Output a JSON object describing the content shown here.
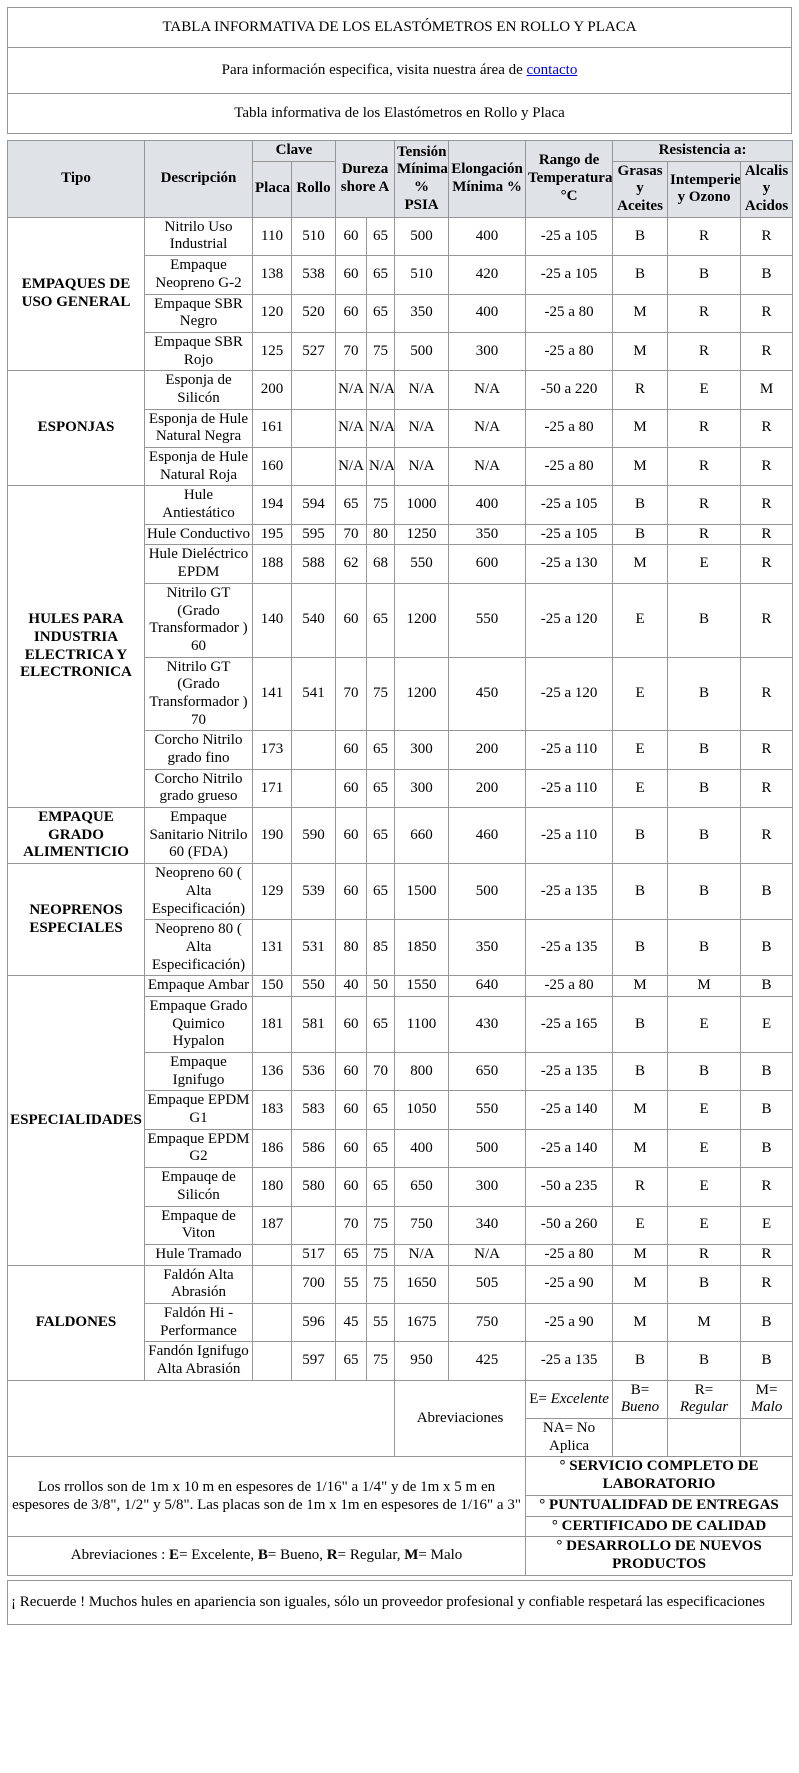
{
  "header": {
    "title": "TABLA INFORMATIVA DE LOS ELASTÓMETROS EN ROLLO Y PLACA",
    "contact_prefix": "Para información especifica, visita nuestra área de ",
    "contact_link": "contacto",
    "subtitle": "Tabla informativa de los Elastómetros en Rollo y Placa"
  },
  "table": {
    "header_rows": [
      [
        {
          "label": "Tipo",
          "rs": 2,
          "name": "col-header-tipo"
        },
        {
          "label": "Descripción",
          "rs": 2,
          "name": "col-header-descripcion"
        },
        {
          "label": "Clave",
          "cs": 2,
          "name": "col-header-clave"
        },
        {
          "label": "Dureza\nshore A",
          "rs": 2,
          "cs": 2,
          "name": "col-header-dureza"
        },
        {
          "label": "Tensión\nMínima\n%\nPSIA",
          "rs": 2,
          "name": "col-header-tension"
        },
        {
          "label": "Elongación\nMínima %",
          "rs": 2,
          "name": "col-header-elongacion"
        },
        {
          "label": "Rango de\nTemperatura\n°C",
          "rs": 2,
          "name": "col-header-rango"
        },
        {
          "label": "Resistencia a:",
          "cs": 3,
          "name": "col-header-resistencia"
        }
      ],
      [
        {
          "label": "Placa",
          "name": "col-header-placa"
        },
        {
          "label": "Rollo",
          "name": "col-header-rollo"
        },
        {
          "label": "Grasas\ny\nAceites",
          "name": "col-header-grasas"
        },
        {
          "label": "Intemperie\ny Ozono",
          "name": "col-header-intemperie"
        },
        {
          "label": "Alcalis\ny\nAcidos",
          "name": "col-header-alcalis"
        }
      ]
    ],
    "groups": [
      {
        "tipo": "EMPAQUES DE USO GENERAL",
        "rows": [
          {
            "descripcion": "Nitrilo Uso Industrial",
            "placa": "110",
            "rollo": "510",
            "dureza_min": "60",
            "dureza_max": "65",
            "tension": "500",
            "elongacion": "400",
            "rango": "-25 a 105",
            "grasas": "B",
            "intemperie": "R",
            "alcalis": "R"
          },
          {
            "descripcion": "Empaque Neopreno G-2",
            "placa": "138",
            "rollo": "538",
            "dureza_min": "60",
            "dureza_max": "65",
            "tension": "510",
            "elongacion": "420",
            "rango": "-25 a 105",
            "grasas": "B",
            "intemperie": "B",
            "alcalis": "B"
          },
          {
            "descripcion": "Empaque SBR Negro",
            "placa": "120",
            "rollo": "520",
            "dureza_min": "60",
            "dureza_max": "65",
            "tension": "350",
            "elongacion": "400",
            "rango": "-25 a 80",
            "grasas": "M",
            "intemperie": "R",
            "alcalis": "R"
          },
          {
            "descripcion": "Empaque SBR Rojo",
            "placa": "125",
            "rollo": "527",
            "dureza_min": "70",
            "dureza_max": "75",
            "tension": "500",
            "elongacion": "300",
            "rango": "-25 a 80",
            "grasas": "M",
            "intemperie": "R",
            "alcalis": "R"
          }
        ]
      },
      {
        "tipo": "ESPONJAS",
        "rows": [
          {
            "descripcion": "Esponja de Silicón",
            "placa": "200",
            "rollo": "",
            "dureza_min": "N/A",
            "dureza_max": "N/A",
            "tension": "N/A",
            "elongacion": "N/A",
            "rango": "-50 a 220",
            "grasas": "R",
            "intemperie": "E",
            "alcalis": "M"
          },
          {
            "descripcion": "Esponja de Hule Natural Negra",
            "placa": "161",
            "rollo": "",
            "dureza_min": "N/A",
            "dureza_max": "N/A",
            "tension": "N/A",
            "elongacion": "N/A",
            "rango": "-25 a 80",
            "grasas": "M",
            "intemperie": "R",
            "alcalis": "R"
          },
          {
            "descripcion": "Esponja de Hule Natural Roja",
            "placa": "160",
            "rollo": "",
            "dureza_min": "N/A",
            "dureza_max": "N/A",
            "tension": "N/A",
            "elongacion": "N/A",
            "rango": "-25 a 80",
            "grasas": "M",
            "intemperie": "R",
            "alcalis": "R"
          }
        ]
      },
      {
        "tipo": "HULES PARA INDUSTRIA ELECTRICA Y ELECTRONICA",
        "rows": [
          {
            "descripcion": "Hule Antiestático",
            "placa": "194",
            "rollo": "594",
            "dureza_min": "65",
            "dureza_max": "75",
            "tension": "1000",
            "elongacion": "400",
            "rango": "-25 a 105",
            "grasas": "B",
            "intemperie": "R",
            "alcalis": "R"
          },
          {
            "descripcion": "Hule Conductivo",
            "placa": "195",
            "rollo": "595",
            "dureza_min": "70",
            "dureza_max": "80",
            "tension": "1250",
            "elongacion": "350",
            "rango": "-25 a 105",
            "grasas": "B",
            "intemperie": "R",
            "alcalis": "R"
          },
          {
            "descripcion": "Hule Dieléctrico EPDM",
            "placa": "188",
            "rollo": "588",
            "dureza_min": "62",
            "dureza_max": "68",
            "tension": "550",
            "elongacion": "600",
            "rango": "-25 a 130",
            "grasas": "M",
            "intemperie": "E",
            "alcalis": "R"
          },
          {
            "descripcion": "Nitrilo GT (Grado Transformador ) 60",
            "placa": "140",
            "rollo": "540",
            "dureza_min": "60",
            "dureza_max": "65",
            "tension": "1200",
            "elongacion": "550",
            "rango": "-25 a 120",
            "grasas": "E",
            "intemperie": "B",
            "alcalis": "R"
          },
          {
            "descripcion": "Nitrilo GT (Grado Transformador ) 70",
            "placa": "141",
            "rollo": "541",
            "dureza_min": "70",
            "dureza_max": "75",
            "tension": "1200",
            "elongacion": "450",
            "rango": "-25 a 120",
            "grasas": "E",
            "intemperie": "B",
            "alcalis": "R"
          },
          {
            "descripcion": "Corcho Nitrilo grado fino",
            "placa": "173",
            "rollo": "",
            "dureza_min": "60",
            "dureza_max": "65",
            "tension": "300",
            "elongacion": "200",
            "rango": "-25 a 110",
            "grasas": "E",
            "intemperie": "B",
            "alcalis": "R"
          },
          {
            "descripcion": "Corcho Nitrilo grado grueso",
            "placa": "171",
            "rollo": "",
            "dureza_min": "60",
            "dureza_max": "65",
            "tension": "300",
            "elongacion": "200",
            "rango": "-25 a 110",
            "grasas": "E",
            "intemperie": "B",
            "alcalis": "R"
          }
        ]
      },
      {
        "tipo": "EMPAQUE GRADO ALIMENTICIO",
        "rows": [
          {
            "descripcion": "Empaque Sanitario Nitrilo 60 (FDA)",
            "placa": "190",
            "rollo": "590",
            "dureza_min": "60",
            "dureza_max": "65",
            "tension": "660",
            "elongacion": "460",
            "rango": "-25 a 110",
            "grasas": "B",
            "intemperie": "B",
            "alcalis": "R"
          }
        ]
      },
      {
        "tipo": "NEOPRENOS ESPECIALES",
        "rows": [
          {
            "descripcion": "Neopreno 60 ( Alta Especificación)",
            "placa": "129",
            "rollo": "539",
            "dureza_min": "60",
            "dureza_max": "65",
            "tension": "1500",
            "elongacion": "500",
            "rango": "-25 a 135",
            "grasas": "B",
            "intemperie": "B",
            "alcalis": "B"
          },
          {
            "descripcion": "Neopreno 80 ( Alta Especificación)",
            "placa": "131",
            "rollo": "531",
            "dureza_min": "80",
            "dureza_max": "85",
            "tension": "1850",
            "elongacion": "350",
            "rango": "-25 a 135",
            "grasas": "B",
            "intemperie": "B",
            "alcalis": "B"
          }
        ]
      },
      {
        "tipo": "ESPECIALIDADES",
        "rows": [
          {
            "descripcion": "Empaque Ambar",
            "placa": "150",
            "rollo": "550",
            "dureza_min": "40",
            "dureza_max": "50",
            "tension": "1550",
            "elongacion": "640",
            "rango": "-25 a 80",
            "grasas": "M",
            "intemperie": "M",
            "alcalis": "B"
          },
          {
            "descripcion": "Empaque Grado Quimico Hypalon",
            "placa": "181",
            "rollo": "581",
            "dureza_min": "60",
            "dureza_max": "65",
            "tension": "1100",
            "elongacion": "430",
            "rango": "-25 a 165",
            "grasas": "B",
            "intemperie": "E",
            "alcalis": "E"
          },
          {
            "descripcion": "Empaque Ignifugo",
            "placa": "136",
            "rollo": "536",
            "dureza_min": "60",
            "dureza_max": "70",
            "tension": "800",
            "elongacion": "650",
            "rango": "-25 a 135",
            "grasas": "B",
            "intemperie": "B",
            "alcalis": "B"
          },
          {
            "descripcion": "Empaque EPDM G1",
            "placa": "183",
            "rollo": "583",
            "dureza_min": "60",
            "dureza_max": "65",
            "tension": "1050",
            "elongacion": "550",
            "rango": "-25 a 140",
            "grasas": "M",
            "intemperie": "E",
            "alcalis": "B"
          },
          {
            "descripcion": "Empaque EPDM G2",
            "placa": "186",
            "rollo": "586",
            "dureza_min": "60",
            "dureza_max": "65",
            "tension": "400",
            "elongacion": "500",
            "rango": "-25 a 140",
            "grasas": "M",
            "intemperie": "E",
            "alcalis": "B"
          },
          {
            "descripcion": "Empauqe de Silicón",
            "placa": "180",
            "rollo": "580",
            "dureza_min": "60",
            "dureza_max": "65",
            "tension": "650",
            "elongacion": "300",
            "rango": "-50 a 235",
            "grasas": "R",
            "intemperie": "E",
            "alcalis": "R"
          },
          {
            "descripcion": "Empaque de Viton",
            "placa": "187",
            "rollo": "",
            "dureza_min": "70",
            "dureza_max": "75",
            "tension": "750",
            "elongacion": "340",
            "rango": "-50 a 260",
            "grasas": "E",
            "intemperie": "E",
            "alcalis": "E"
          },
          {
            "descripcion": "Hule Tramado",
            "placa": "",
            "rollo": "517",
            "dureza_min": "65",
            "dureza_max": "75",
            "tension": "N/A",
            "elongacion": "N/A",
            "rango": "-25 a 80",
            "grasas": "M",
            "intemperie": "R",
            "alcalis": "R"
          }
        ]
      },
      {
        "tipo": "FALDONES",
        "rows": [
          {
            "descripcion": "Faldón Alta Abrasión",
            "placa": "",
            "rollo": "700",
            "dureza_min": "55",
            "dureza_max": "75",
            "tension": "1650",
            "elongacion": "505",
            "rango": "-25 a 90",
            "grasas": "M",
            "intemperie": "B",
            "alcalis": "R"
          },
          {
            "descripcion": "Faldón Hi - Performance",
            "placa": "",
            "rollo": "596",
            "dureza_min": "45",
            "dureza_max": "55",
            "tension": "1675",
            "elongacion": "750",
            "rango": "-25 a 90",
            "grasas": "M",
            "intemperie": "M",
            "alcalis": "B"
          },
          {
            "descripcion": "Fandón Ignifugo Alta Abrasión",
            "placa": "",
            "rollo": "597",
            "dureza_min": "65",
            "dureza_max": "75",
            "tension": "950",
            "elongacion": "425",
            "rango": "-25 a 135",
            "grasas": "B",
            "intemperie": "B",
            "alcalis": "B"
          }
        ]
      }
    ],
    "legend": {
      "label": "Abreviaciones",
      "excelente": {
        "prefix": "E= ",
        "word": "Excelente"
      },
      "grades": [
        {
          "prefix": "B=",
          "word": "Bueno"
        },
        {
          "prefix": "R=",
          "word": "Regular"
        },
        {
          "prefix": "M=",
          "word": "Malo"
        }
      ],
      "na": "NA= No\nAplica"
    },
    "notes": {
      "rolls": "Los rrollos son de 1m x 10 m en espesores  de 1/16\" a 1/4\" y de 1m x 5 m en espesores de 3/8\", 1/2\" y 5/8\". Las placas son de 1m x 1m en espesores de 1/16\" a 3\"",
      "services": [
        "° SERVICIO COMPLETO DE LABORATORIO",
        "° PUNTUALIDFAD DE ENTREGAS",
        "° CERTIFICADO DE CALIDAD",
        "° DESARROLLO DE NUEVOS PRODUCTOS"
      ],
      "abbrev_segments": [
        {
          "text": "Abreviaciones : "
        },
        {
          "text": "E",
          "bold": true
        },
        {
          "text": "= Excelente, "
        },
        {
          "text": "B",
          "bold": true
        },
        {
          "text": "= Bueno, "
        },
        {
          "text": "R",
          "bold": true
        },
        {
          "text": "= Regular, "
        },
        {
          "text": "M",
          "bold": true
        },
        {
          "text": "= Malo"
        }
      ],
      "reminder": "¡ Recuerde !  Muchos hules en apariencia son iguales, sólo un proveedor profesional y confiable respetará las especificaciones"
    }
  }
}
